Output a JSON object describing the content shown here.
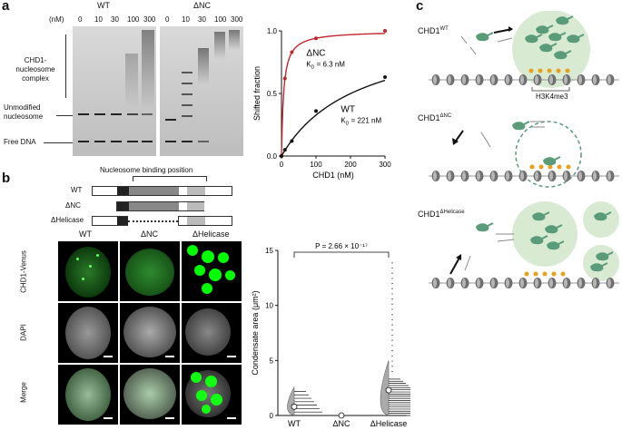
{
  "panel_a": {
    "letter": "a",
    "group_wt": "WT",
    "group_dnc": "ΔNC",
    "conc_unit": "(nM)",
    "concs": [
      "0",
      "10",
      "30",
      "100",
      "300"
    ],
    "labels": {
      "complex": "CHD1-\nnucleosome\ncomplex",
      "unmodified": "Unmodified\nnucleosome",
      "free": "Free DNA"
    }
  },
  "panel_b": {
    "letter": "b",
    "domain_title": "Nucleosome binding position",
    "constructs": [
      "WT",
      "ΔNC",
      "ΔHelicase"
    ],
    "columns": [
      "WT",
      "ΔNC",
      "ΔHelicase"
    ],
    "rows": [
      "CHD1-Venus",
      "DAPI",
      "Merge"
    ]
  },
  "panel_c": {
    "letter": "c",
    "label_wt_base": "CHD1",
    "label_wt_sup": "WT",
    "label_dnc_base": "CHD1",
    "label_dnc_sup": "ΔNC",
    "label_dh_base": "CHD1",
    "label_dh_sup": "ΔHelicase",
    "mark": "H3K4me3"
  },
  "chart_data": [
    {
      "type": "line",
      "xlabel": "CHD1 (nM)",
      "ylabel": "Shifted fraction",
      "xlim": [
        0,
        300
      ],
      "ylim": [
        0,
        1.0
      ],
      "xticks": [
        "0",
        "100",
        "200",
        "300"
      ],
      "yticks": [
        "0.0",
        "0.5",
        "1.0"
      ],
      "series": [
        {
          "name": "ΔNC",
          "kd_label": "K",
          "kd_sub": "D",
          "kd_value": " = 6.3 nM",
          "color": "#c0272d",
          "x": [
            0,
            10,
            30,
            100,
            300
          ],
          "y": [
            0.0,
            0.62,
            0.83,
            0.94,
            1.0
          ]
        },
        {
          "name": "WT",
          "kd_label": "K",
          "kd_sub": "D",
          "kd_value": " = 221 nM",
          "color": "#111111",
          "x": [
            0,
            10,
            30,
            100,
            300
          ],
          "y": [
            0.0,
            0.05,
            0.12,
            0.36,
            0.63
          ]
        }
      ]
    },
    {
      "type": "violin",
      "ylabel": "Condensate area (μm²)",
      "categories": [
        "WT",
        "ΔNC",
        "ΔHelicase"
      ],
      "ylim": [
        0,
        15
      ],
      "yticks": [
        "0",
        "5",
        "10",
        "15"
      ],
      "annotation": "P = 2.66 × 10⁻¹⁷",
      "median": [
        0.8,
        0.0,
        2.3
      ]
    }
  ]
}
